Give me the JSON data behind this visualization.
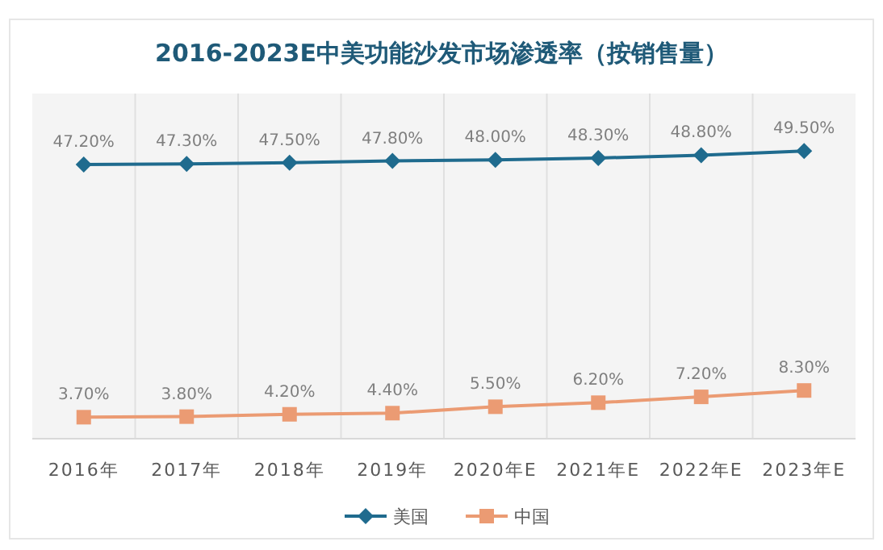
{
  "chart_data": {
    "type": "line",
    "title": "2016-2023E中美功能沙发市场渗透率（按销售量）",
    "categories": [
      "2016年",
      "2017年",
      "2018年",
      "2019年",
      "2020年E",
      "2021年E",
      "2022年E",
      "2023年E"
    ],
    "series": [
      {
        "name": "美国",
        "color": "#1f6b8e",
        "marker": "diamond",
        "values": [
          47.2,
          47.3,
          47.5,
          47.8,
          48.0,
          48.3,
          48.8,
          49.5
        ],
        "value_labels": [
          "47.20%",
          "47.30%",
          "47.50%",
          "47.80%",
          "48.00%",
          "48.30%",
          "48.80%",
          "49.50%"
        ]
      },
      {
        "name": "中国",
        "color": "#eb9b73",
        "marker": "square",
        "values": [
          3.7,
          3.8,
          4.2,
          4.4,
          5.5,
          6.2,
          7.2,
          8.3
        ],
        "value_labels": [
          "3.70%",
          "3.80%",
          "4.20%",
          "4.40%",
          "5.50%",
          "6.20%",
          "7.20%",
          "8.30%"
        ]
      }
    ],
    "grid": "x",
    "legend": "bottom",
    "line_style": "solid"
  }
}
